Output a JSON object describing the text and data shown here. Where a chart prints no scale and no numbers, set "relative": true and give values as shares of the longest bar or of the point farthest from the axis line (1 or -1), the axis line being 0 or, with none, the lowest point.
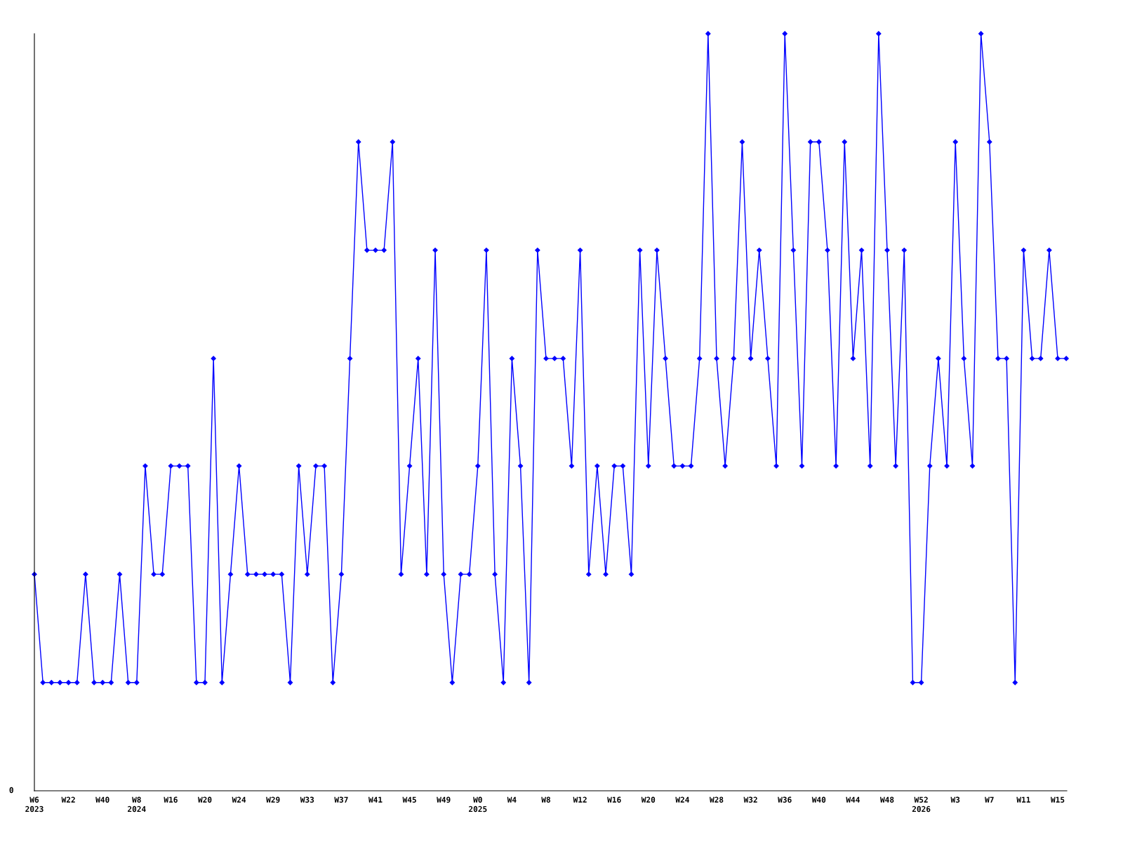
{
  "chart_data": {
    "type": "line",
    "relative": true,
    "marker": "diamond",
    "line_style": "solid",
    "grid": false,
    "legend": false,
    "categories": [
      "W6\n2023",
      null,
      null,
      null,
      "W22",
      null,
      null,
      null,
      "W40",
      null,
      null,
      null,
      "W8\n2024",
      null,
      null,
      null,
      "W16",
      null,
      null,
      null,
      "W20",
      null,
      null,
      null,
      "W24",
      null,
      null,
      null,
      "W29",
      null,
      null,
      null,
      "W33",
      null,
      null,
      null,
      "W37",
      null,
      null,
      null,
      "W41",
      null,
      null,
      null,
      "W45",
      null,
      null,
      null,
      "W49",
      null,
      null,
      null,
      "W0\n2025",
      null,
      null,
      null,
      "W4",
      null,
      null,
      null,
      "W8",
      null,
      null,
      null,
      "W12",
      null,
      null,
      null,
      "W16",
      null,
      null,
      null,
      "W20",
      null,
      null,
      null,
      "W24",
      null,
      null,
      null,
      "W28",
      null,
      null,
      null,
      "W32",
      null,
      null,
      null,
      "W36",
      null,
      null,
      null,
      "W40",
      null,
      null,
      null,
      "W44",
      null,
      null,
      null,
      "W48",
      null,
      null,
      null,
      "W52\n2026",
      null,
      null,
      null,
      "W3",
      null,
      null,
      null,
      "W7",
      null,
      null,
      null,
      "W11",
      null,
      null,
      null,
      "W15",
      null
    ],
    "series": [
      {
        "color": "#0000ff",
        "values": [
          0.286,
          0.143,
          0.143,
          0.143,
          0.143,
          0.143,
          0.286,
          0.143,
          0.143,
          0.143,
          0.286,
          0.143,
          0.143,
          0.429,
          0.286,
          0.286,
          0.429,
          0.429,
          0.429,
          0.143,
          0.143,
          0.571,
          0.143,
          0.286,
          0.429,
          0.286,
          0.286,
          0.286,
          0.286,
          0.286,
          0.143,
          0.429,
          0.286,
          0.429,
          0.429,
          0.143,
          0.286,
          0.571,
          0.857,
          0.714,
          0.714,
          0.714,
          0.857,
          0.286,
          0.429,
          0.571,
          0.286,
          0.714,
          0.286,
          0.143,
          0.286,
          0.286,
          0.429,
          0.714,
          0.286,
          0.143,
          0.571,
          0.429,
          0.143,
          0.714,
          0.571,
          0.571,
          0.571,
          0.429,
          0.714,
          0.286,
          0.429,
          0.286,
          0.429,
          0.429,
          0.286,
          0.714,
          0.429,
          0.714,
          0.571,
          0.429,
          0.429,
          0.429,
          0.571,
          1,
          0.571,
          0.429,
          0.571,
          0.857,
          0.571,
          0.714,
          0.571,
          0.429,
          1,
          0.714,
          0.429,
          0.857,
          0.857,
          0.714,
          0.429,
          0.857,
          0.571,
          0.714,
          0.429,
          1,
          0.714,
          0.429,
          0.714,
          0.143,
          0.143,
          0.429,
          0.571,
          0.429,
          0.857,
          0.571,
          0.429,
          1,
          0.857,
          0.571,
          0.571,
          0.143,
          0.714,
          0.571,
          0.571,
          0.714,
          0.571,
          0.571
        ]
      }
    ],
    "annotations": [
      "0"
    ]
  }
}
